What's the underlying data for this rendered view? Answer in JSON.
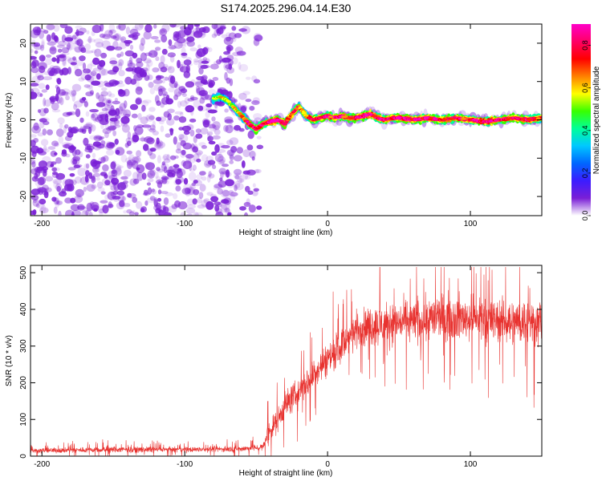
{
  "title": "S174.2025.296.04.14.E30",
  "colors": {
    "scatter": "#7a1fd6",
    "snr_line": "#e8322f",
    "colormap": [
      "#ffffff",
      "#7a1fd6",
      "#3b1cff",
      "#0066ff",
      "#00c8ff",
      "#00ff99",
      "#38ff00",
      "#ffff00",
      "#ff8000",
      "#ff0000",
      "#ff0066",
      "#ff00c8"
    ]
  },
  "chart_data": [
    {
      "type": "heatmap",
      "name": "spectrogram",
      "xlabel": "Height of straight line (km)",
      "ylabel": "Frequency (Hz)",
      "xlim": [
        -208,
        150
      ],
      "ylim": [
        -25,
        25
      ],
      "xticks": [
        -200,
        -100,
        0,
        100
      ],
      "yticks": [
        -20,
        -10,
        0,
        10,
        20
      ],
      "colorbar": {
        "label": "Normalized spectral amplitude",
        "range": [
          0,
          0.9
        ],
        "ticks": [
          0.0,
          0.2,
          0.4,
          0.6,
          0.8
        ]
      },
      "noise_region": {
        "x_range": [
          -208,
          -55
        ],
        "y_range": [
          -25,
          25
        ]
      },
      "ridge": {
        "x": [
          -80,
          -75,
          -70,
          -65,
          -60,
          -55,
          -50,
          -45,
          -40,
          -35,
          -30,
          -25,
          -20,
          -15,
          -10,
          -5,
          0,
          5,
          10,
          15,
          20,
          25,
          30,
          35,
          40,
          45,
          50,
          60,
          70,
          80,
          90,
          100,
          110,
          120,
          130,
          140,
          150
        ],
        "y": [
          5.5,
          6,
          5,
          3,
          1,
          -1,
          -2.5,
          -1,
          -0.5,
          0,
          -1,
          1.5,
          3.5,
          1,
          0,
          0.5,
          1,
          0.5,
          1,
          0.5,
          0.5,
          1,
          1.5,
          0.5,
          0,
          0.5,
          0.5,
          0,
          0.5,
          0,
          0.5,
          0,
          -0.5,
          0,
          0.5,
          0,
          0.5
        ],
        "amplitude": [
          0.45,
          0.5,
          0.45,
          0.5,
          0.55,
          0.7,
          0.75,
          0.7,
          0.8,
          0.85,
          0.75,
          0.65,
          0.6,
          0.6,
          0.7,
          0.7,
          0.75,
          0.7,
          0.75,
          0.7,
          0.75,
          0.8,
          0.85,
          0.75,
          0.75,
          0.7,
          0.8,
          0.75,
          0.8,
          0.7,
          0.75,
          0.7,
          0.8,
          0.75,
          0.7,
          0.75,
          0.7
        ]
      }
    },
    {
      "type": "line",
      "name": "snr",
      "xlabel": "Height of straight line (km)",
      "ylabel": "SNR (10 * v/v)",
      "xlim": [
        -208,
        150
      ],
      "ylim": [
        0,
        520
      ],
      "xticks": [
        -200,
        -100,
        0,
        100
      ],
      "yticks": [
        0,
        100,
        200,
        300,
        400,
        500
      ],
      "envelope": {
        "x": [
          -208,
          -150,
          -100,
          -60,
          -45,
          -42,
          -35,
          -30,
          -20,
          -10,
          0,
          10,
          20,
          30,
          40,
          50,
          60,
          80,
          100,
          120,
          150
        ],
        "mean": [
          15,
          18,
          18,
          20,
          25,
          60,
          100,
          140,
          175,
          220,
          265,
          300,
          345,
          355,
          360,
          365,
          370,
          380,
          375,
          370,
          365
        ],
        "spread": [
          10,
          12,
          10,
          12,
          15,
          40,
          50,
          60,
          60,
          65,
          70,
          70,
          75,
          80,
          85,
          85,
          90,
          95,
          90,
          90,
          95
        ]
      }
    }
  ]
}
